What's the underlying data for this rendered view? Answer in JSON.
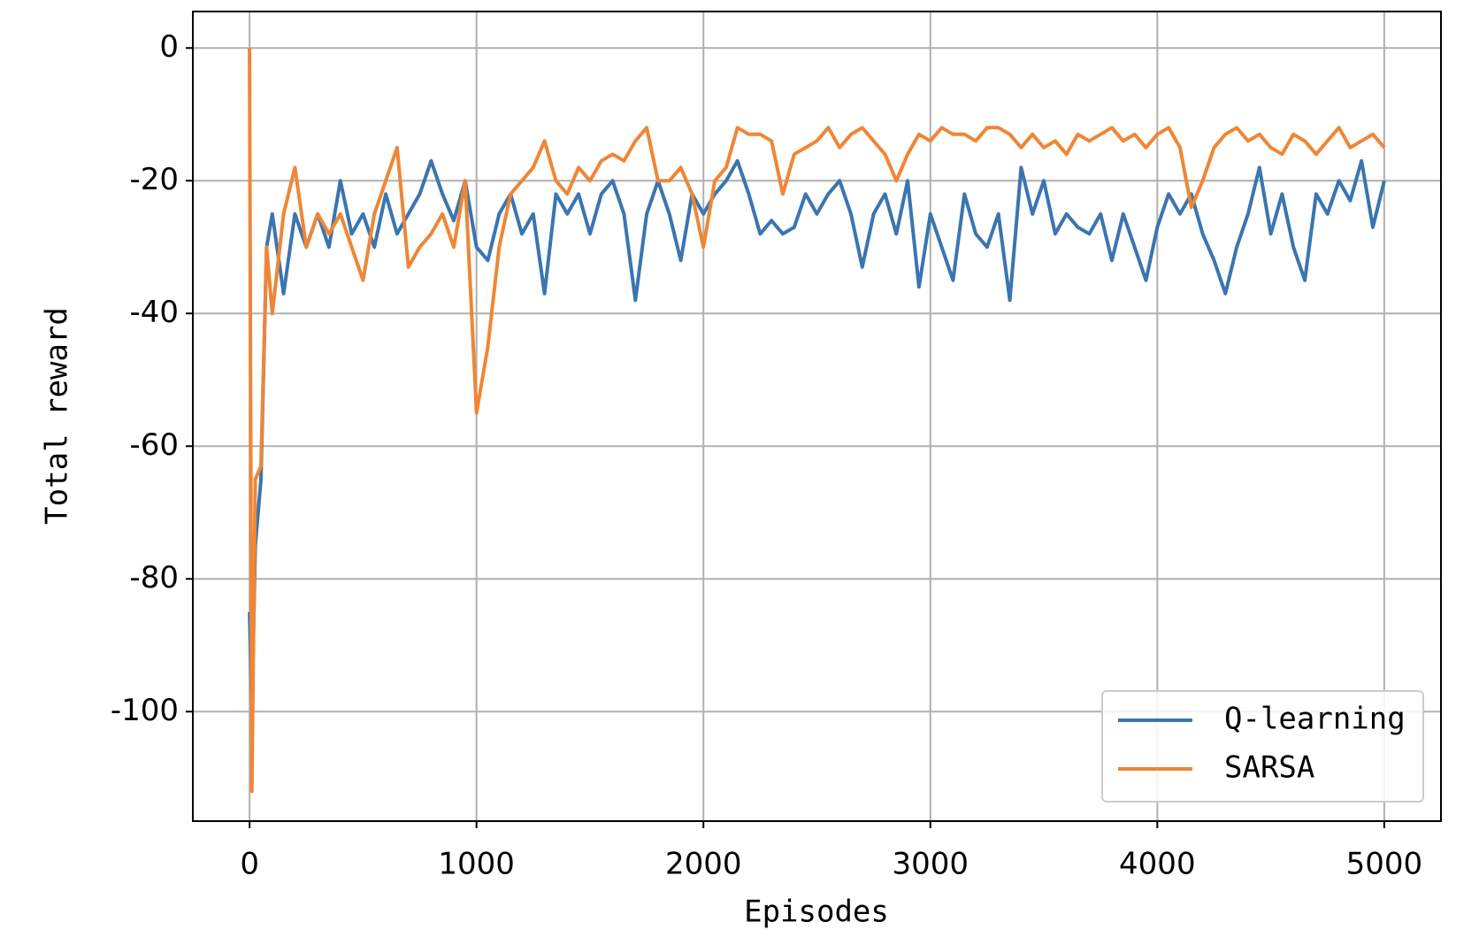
{
  "chart_data": {
    "type": "line",
    "xlabel": "Episodes",
    "ylabel": "Total reward",
    "x": [
      0,
      10,
      25,
      50,
      75,
      100,
      150,
      200,
      250,
      300,
      350,
      400,
      450,
      500,
      550,
      600,
      650,
      700,
      750,
      800,
      850,
      900,
      950,
      1000,
      1050,
      1100,
      1150,
      1200,
      1250,
      1300,
      1350,
      1400,
      1450,
      1500,
      1550,
      1600,
      1650,
      1700,
      1750,
      1800,
      1850,
      1900,
      1950,
      2000,
      2050,
      2100,
      2150,
      2200,
      2250,
      2300,
      2350,
      2400,
      2450,
      2500,
      2550,
      2600,
      2650,
      2700,
      2750,
      2800,
      2850,
      2900,
      2950,
      3000,
      3050,
      3100,
      3150,
      3200,
      3250,
      3300,
      3350,
      3400,
      3450,
      3500,
      3550,
      3600,
      3650,
      3700,
      3750,
      3800,
      3850,
      3900,
      3950,
      4000,
      4050,
      4100,
      4150,
      4200,
      4250,
      4300,
      4350,
      4400,
      4450,
      4500,
      4550,
      4600,
      4650,
      4700,
      4750,
      4800,
      4850,
      4900,
      4950,
      5000
    ],
    "series": [
      {
        "name": "Q-learning",
        "color": "#3a75b0",
        "values": [
          -85,
          -100,
          -75,
          -65,
          -30,
          -25,
          -37,
          -25,
          -30,
          -25,
          -30,
          -20,
          -28,
          -25,
          -30,
          -22,
          -28,
          -25,
          -22,
          -17,
          -22,
          -26,
          -20,
          -30,
          -32,
          -25,
          -22,
          -28,
          -25,
          -37,
          -22,
          -25,
          -22,
          -28,
          -22,
          -20,
          -25,
          -38,
          -25,
          -20,
          -25,
          -32,
          -22,
          -25,
          -22,
          -20,
          -17,
          -22,
          -28,
          -26,
          -28,
          -27,
          -22,
          -25,
          -22,
          -20,
          -25,
          -33,
          -25,
          -22,
          -28,
          -20,
          -36,
          -25,
          -30,
          -35,
          -22,
          -28,
          -30,
          -25,
          -38,
          -18,
          -25,
          -20,
          -28,
          -25,
          -27,
          -28,
          -25,
          -32,
          -25,
          -30,
          -35,
          -27,
          -22,
          -25,
          -22,
          -28,
          -32,
          -37,
          -30,
          -25,
          -18,
          -28,
          -22,
          -30,
          -35,
          -22,
          -25,
          -20,
          -23,
          -17,
          -27,
          -20
        ]
      },
      {
        "name": "SARSA",
        "color": "#ef8636",
        "values": [
          0,
          -112,
          -65,
          -63,
          -30,
          -40,
          -25,
          -18,
          -30,
          -25,
          -28,
          -25,
          -30,
          -35,
          -25,
          -20,
          -15,
          -33,
          -30,
          -28,
          -25,
          -30,
          -20,
          -55,
          -45,
          -30,
          -22,
          -20,
          -18,
          -14,
          -20,
          -22,
          -18,
          -20,
          -17,
          -16,
          -17,
          -14,
          -12,
          -20,
          -20,
          -18,
          -22,
          -30,
          -20,
          -18,
          -12,
          -13,
          -13,
          -14,
          -22,
          -16,
          -15,
          -14,
          -12,
          -15,
          -13,
          -12,
          -14,
          -16,
          -20,
          -16,
          -13,
          -14,
          -12,
          -13,
          -13,
          -14,
          -12,
          -12,
          -13,
          -15,
          -13,
          -15,
          -14,
          -16,
          -13,
          -14,
          -13,
          -12,
          -14,
          -13,
          -15,
          -13,
          -12,
          -15,
          -24,
          -20,
          -15,
          -13,
          -12,
          -14,
          -13,
          -15,
          -16,
          -13,
          -14,
          -16,
          -14,
          -12,
          -15,
          -14,
          -13,
          -15
        ]
      }
    ],
    "xlim": [
      -250,
      5250
    ],
    "ylim": [
      -116.5,
      5.5
    ],
    "xticks": [
      0,
      1000,
      2000,
      3000,
      4000,
      5000
    ],
    "yticks": [
      -100,
      -80,
      -60,
      -40,
      -20,
      0
    ],
    "grid": true,
    "legend": "lower right"
  }
}
